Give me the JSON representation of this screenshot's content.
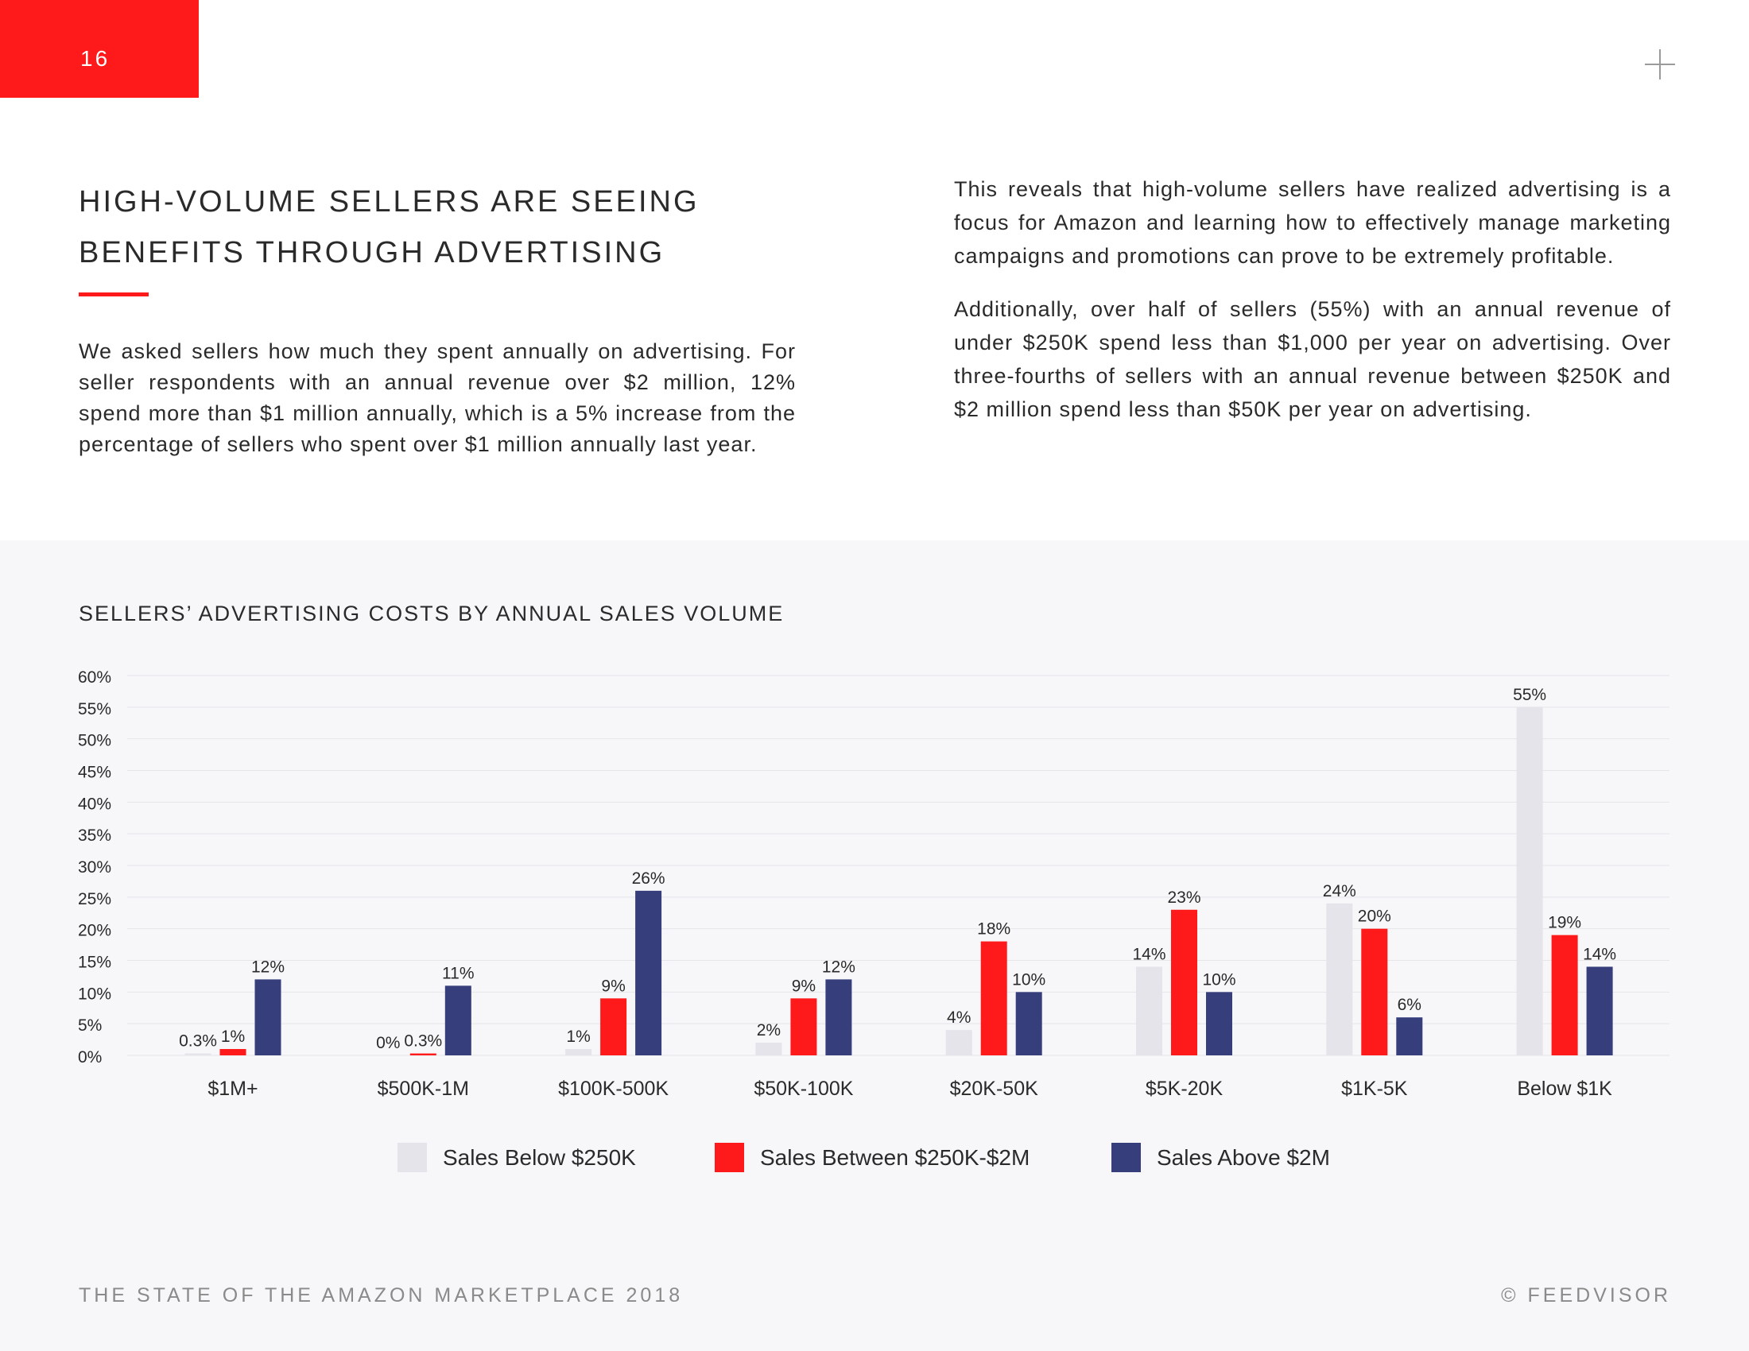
{
  "page": {
    "number": "16",
    "heading_line1": "HIGH-VOLUME SELLERS ARE SEEING",
    "heading_line2": "BENEFITS THROUGH ADVERTISING",
    "left_paragraph": "We asked sellers how much they spent annually on advertising. For seller respondents with an annual revenue over $2 million, 12% spend more than $1 million annually, which is a 5% increase from the percentage of sellers who spent over $1 million annually last year.",
    "right_paragraph_1": "This reveals that high-volume sellers have realized advertising is a focus for Amazon and learning how to effectively manage marketing campaigns and promotions can prove to be extremely profitable.",
    "right_paragraph_2": "Additionally, over half of sellers (55%) with an annual revenue of under $250K spend less than $1,000 per year on advertising. Over three-fourths of sellers with an annual revenue between $250K and $2 million spend less than $50K per year on advertising."
  },
  "footer": {
    "left": "THE STATE OF THE AMAZON MARKETPLACE 2018",
    "right": "© FEEDVISOR"
  },
  "colors": {
    "accent": "#fe1a1a",
    "series_below_250k": "#e4e4ea",
    "series_250k_2m": "#fe1a1a",
    "series_above_2m": "#363e7c"
  },
  "icons": {
    "corner": "plus-icon"
  },
  "chart_data": {
    "type": "bar",
    "title": "SELLERS’ ADVERTISING COSTS BY ANNUAL SALES VOLUME",
    "categories": [
      "$1M+",
      "$500K-1M",
      "$100K-500K",
      "$50K-100K",
      "$20K-50K",
      "$5K-20K",
      "$1K-5K",
      "Below $1K"
    ],
    "ylim": [
      0,
      60
    ],
    "yticks": [
      0,
      5,
      10,
      15,
      20,
      25,
      30,
      35,
      40,
      45,
      50,
      55,
      60
    ],
    "ytick_labels": [
      "0%",
      "5%",
      "10%",
      "15%",
      "20%",
      "25%",
      "30%",
      "35%",
      "40%",
      "45%",
      "50%",
      "55%",
      "60%"
    ],
    "grid": true,
    "legend_position": "bottom",
    "series": [
      {
        "name": "Sales Below $250K",
        "color": "#e4e4ea",
        "values": [
          0.3,
          0,
          1,
          2,
          4,
          14,
          24,
          55
        ],
        "labels": [
          "0.3%",
          "0%",
          "1%",
          "2%",
          "4%",
          "14%",
          "24%",
          "55%"
        ]
      },
      {
        "name": "Sales Between $250K-$2M",
        "color": "#fe1a1a",
        "values": [
          1,
          0.3,
          9,
          9,
          18,
          23,
          20,
          19
        ],
        "labels": [
          "1%",
          "0.3%",
          "9%",
          "9%",
          "18%",
          "23%",
          "20%",
          "19%"
        ]
      },
      {
        "name": "Sales Above $2M",
        "color": "#363e7c",
        "values": [
          12,
          11,
          26,
          12,
          10,
          10,
          6,
          14
        ],
        "labels": [
          "12%",
          "11%",
          "26%",
          "12%",
          "10%",
          "10%",
          "6%",
          "14%"
        ]
      }
    ]
  }
}
